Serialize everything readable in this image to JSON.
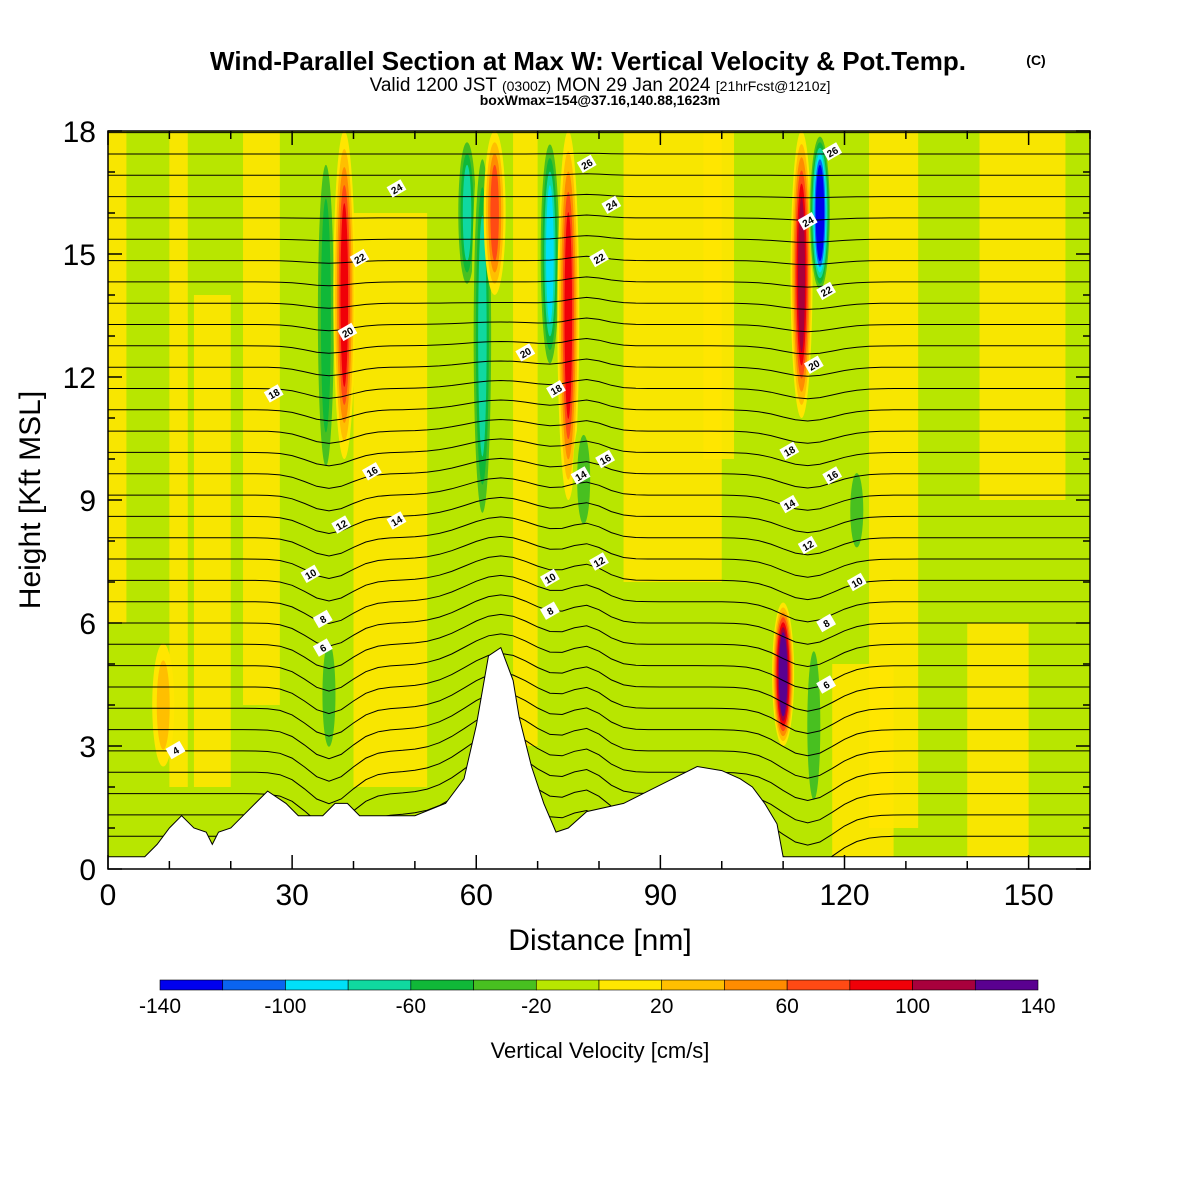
{
  "chart_data": {
    "type": "heatmap",
    "title": "Wind-Parallel Section at Max W: Vertical Velocity & Pot.Temp.",
    "title_mark": "(C)",
    "subtitle": {
      "prefix": "Valid 1200 JST",
      "utc": "(0300Z)",
      "date": "MON 29 Jan 2024",
      "run": "[21hrFcst@1210z]"
    },
    "box_info": "boxWmax=154@37.16,140.88,1623m",
    "xlabel": "Distance [nm]",
    "ylabel": "Height [Kft MSL]",
    "xlim": [
      0,
      160
    ],
    "ylim": [
      0,
      18
    ],
    "xticks": [
      0,
      30,
      60,
      90,
      120,
      150
    ],
    "yticks": [
      0,
      3,
      6,
      9,
      12,
      15,
      18
    ],
    "grid": false,
    "colorbar": {
      "label": "Vertical Velocity [cm/s]",
      "levels": [
        -140,
        -120,
        -100,
        -80,
        -60,
        -40,
        -20,
        0,
        20,
        40,
        60,
        80,
        100,
        120,
        140
      ],
      "tick_labels": [
        "-140",
        "-100",
        "-60",
        "-20",
        "20",
        "60",
        "100",
        "140"
      ],
      "colors": [
        "#0000ee",
        "#0a64f0",
        "#00e0f8",
        "#10d8a0",
        "#10b838",
        "#48c020",
        "#b8e600",
        "#ffe600",
        "#ffbf00",
        "#ff8c00",
        "#ff4a14",
        "#f00008",
        "#a8003c",
        "#5a0090"
      ]
    },
    "terrain_top_kft": [
      [
        0,
        0.3
      ],
      [
        6,
        0.3
      ],
      [
        8,
        0.6
      ],
      [
        10,
        1.0
      ],
      [
        12,
        1.3
      ],
      [
        14,
        1.0
      ],
      [
        16,
        0.9
      ],
      [
        17,
        0.6
      ],
      [
        18,
        0.9
      ],
      [
        20,
        1.0
      ],
      [
        22,
        1.3
      ],
      [
        24,
        1.6
      ],
      [
        26,
        1.9
      ],
      [
        29,
        1.6
      ],
      [
        31,
        1.3
      ],
      [
        35,
        1.3
      ],
      [
        37,
        1.6
      ],
      [
        39,
        1.6
      ],
      [
        41,
        1.3
      ],
      [
        50,
        1.3
      ],
      [
        55,
        1.6
      ],
      [
        58,
        2.2
      ],
      [
        60,
        3.5
      ],
      [
        62,
        5.2
      ],
      [
        64,
        5.4
      ],
      [
        66,
        4.6
      ],
      [
        67,
        3.7
      ],
      [
        69,
        2.5
      ],
      [
        71,
        1.6
      ],
      [
        73,
        0.9
      ],
      [
        75,
        1.0
      ],
      [
        78,
        1.4
      ],
      [
        84,
        1.6
      ],
      [
        88,
        1.9
      ],
      [
        92,
        2.2
      ],
      [
        96,
        2.5
      ],
      [
        100,
        2.4
      ],
      [
        103,
        2.2
      ],
      [
        105,
        2.0
      ],
      [
        107,
        1.6
      ],
      [
        109,
        1.1
      ],
      [
        110,
        0.3
      ],
      [
        160,
        0.3
      ]
    ],
    "vertical_velocity_cells": [
      {
        "x": 9,
        "z0": 2.5,
        "z1": 5.5,
        "w": 45
      },
      {
        "x": 35.5,
        "z0": 9,
        "z1": 18,
        "w": -50
      },
      {
        "x": 38.5,
        "z0": 10,
        "z1": 18,
        "w": 90
      },
      {
        "x": 36,
        "z0": 2.5,
        "z1": 6,
        "w": -40
      },
      {
        "x": 58.5,
        "z0": 14,
        "z1": 18,
        "w": -70
      },
      {
        "x": 61,
        "z0": 8,
        "z1": 18,
        "w": -80
      },
      {
        "x": 63,
        "z0": 14,
        "z1": 18,
        "w": 85
      },
      {
        "x": 72,
        "z0": 12,
        "z1": 18,
        "w": -90
      },
      {
        "x": 75,
        "z0": 9,
        "z1": 18,
        "w": 105
      },
      {
        "x": 77.5,
        "z0": 8,
        "z1": 11,
        "w": -35
      },
      {
        "x": 110,
        "z0": 3,
        "z1": 6.5,
        "w": 154
      },
      {
        "x": 113,
        "z0": 11,
        "z1": 18,
        "w": 110
      },
      {
        "x": 116,
        "z0": 14,
        "z1": 18,
        "w": -150
      },
      {
        "x": 115,
        "z0": 1,
        "z1": 6,
        "w": -40
      },
      {
        "x": 122,
        "z0": 7.5,
        "z1": 10,
        "w": -40
      }
    ],
    "theta_contour_labels": [
      {
        "x": 11,
        "z": 2.9,
        "label": "4"
      },
      {
        "x": 35,
        "z": 5.4,
        "label": "6"
      },
      {
        "x": 35,
        "z": 6.1,
        "label": "8"
      },
      {
        "x": 33,
        "z": 7.2,
        "label": "10"
      },
      {
        "x": 38,
        "z": 8.4,
        "label": "12"
      },
      {
        "x": 47,
        "z": 8.5,
        "label": "14"
      },
      {
        "x": 43,
        "z": 9.7,
        "label": "16"
      },
      {
        "x": 27,
        "z": 11.6,
        "label": "18"
      },
      {
        "x": 39,
        "z": 13.1,
        "label": "20"
      },
      {
        "x": 41,
        "z": 14.9,
        "label": "22"
      },
      {
        "x": 47,
        "z": 16.6,
        "label": "24"
      },
      {
        "x": 72,
        "z": 6.3,
        "label": "8"
      },
      {
        "x": 72,
        "z": 7.1,
        "label": "10"
      },
      {
        "x": 80,
        "z": 7.5,
        "label": "12"
      },
      {
        "x": 77,
        "z": 9.6,
        "label": "14"
      },
      {
        "x": 81,
        "z": 10.0,
        "label": "16"
      },
      {
        "x": 73,
        "z": 11.7,
        "label": "18"
      },
      {
        "x": 68,
        "z": 12.6,
        "label": "20"
      },
      {
        "x": 80,
        "z": 14.9,
        "label": "22"
      },
      {
        "x": 82,
        "z": 16.2,
        "label": "24"
      },
      {
        "x": 78,
        "z": 17.2,
        "label": "26"
      },
      {
        "x": 117,
        "z": 4.5,
        "label": "6"
      },
      {
        "x": 117,
        "z": 6.0,
        "label": "8"
      },
      {
        "x": 122,
        "z": 7.0,
        "label": "10"
      },
      {
        "x": 114,
        "z": 7.9,
        "label": "12"
      },
      {
        "x": 111,
        "z": 8.9,
        "label": "14"
      },
      {
        "x": 118,
        "z": 9.6,
        "label": "16"
      },
      {
        "x": 111,
        "z": 10.2,
        "label": "18"
      },
      {
        "x": 115,
        "z": 12.3,
        "label": "20"
      },
      {
        "x": 117,
        "z": 14.1,
        "label": "22"
      },
      {
        "x": 114,
        "z": 15.8,
        "label": "24"
      },
      {
        "x": 118,
        "z": 17.5,
        "label": "26"
      }
    ]
  }
}
